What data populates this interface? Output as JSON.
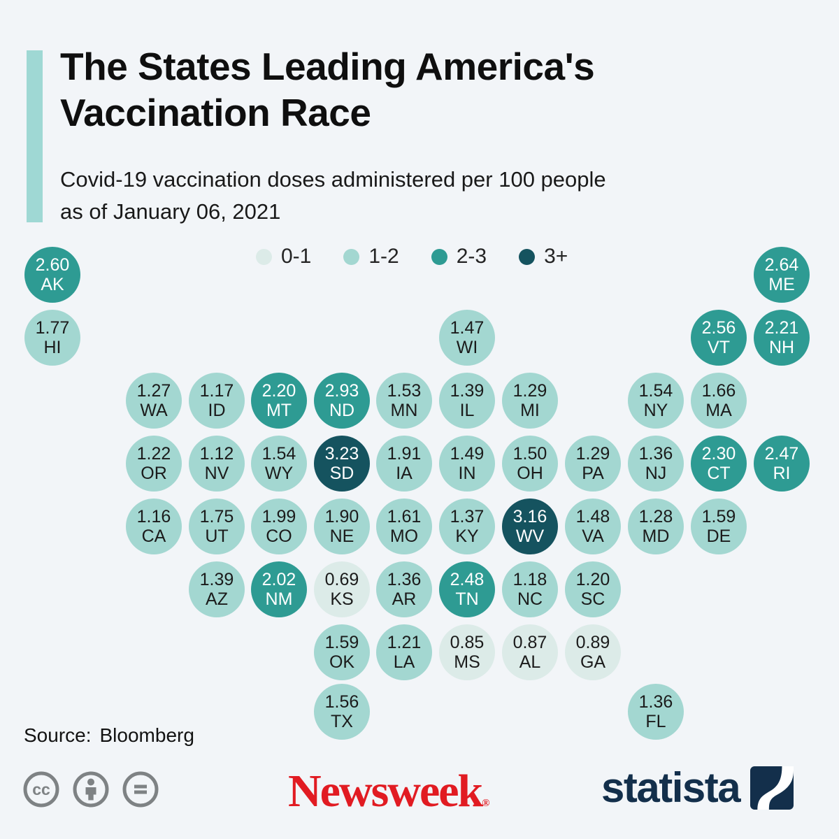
{
  "colors": {
    "background": "#f2f5f8",
    "accent_bar": "#9fd8d4",
    "bucket0": "#dcebe8",
    "bucket1": "#a3d7d1",
    "bucket2": "#2e9b93",
    "bucket3": "#15535f",
    "text_dark": "#1b1b1b",
    "text_light": "#ffffff",
    "newsweek_red": "#e11b22",
    "statista_navy": "#132f4b",
    "cc_gray": "#7e8284"
  },
  "header": {
    "title_line1": "The States Leading America's",
    "title_line2": "Vaccination Race",
    "subtitle_line1": "Covid-19 vaccination doses administered per 100 people",
    "subtitle_line2": "as of January 06, 2021"
  },
  "legend": {
    "items": [
      {
        "label": "0-1",
        "bucket": 0
      },
      {
        "label": "1-2",
        "bucket": 1
      },
      {
        "label": "2-3",
        "bucket": 2
      },
      {
        "label": "3+",
        "bucket": 3
      }
    ]
  },
  "chart_data": {
    "type": "heatmap",
    "variant": "tile-cartogram-bubble-map",
    "title": "The States Leading America's Vaccination Race",
    "subtitle": "Covid-19 vaccination doses administered per 100 people as of January 06, 2021",
    "value_unit": "doses administered per 100 people",
    "as_of": "January 06, 2021",
    "legend_buckets": [
      "0-1",
      "1-2",
      "2-3",
      "3+"
    ],
    "states": [
      {
        "abbr": "AK",
        "value": "2.60",
        "col": 0,
        "row": 0
      },
      {
        "abbr": "ME",
        "value": "2.64",
        "col": 11,
        "row": 0
      },
      {
        "abbr": "HI",
        "value": "1.77",
        "col": 0,
        "row": 1
      },
      {
        "abbr": "WI",
        "value": "1.47",
        "col": 6,
        "row": 1
      },
      {
        "abbr": "VT",
        "value": "2.56",
        "col": 10,
        "row": 1
      },
      {
        "abbr": "NH",
        "value": "2.21",
        "col": 11,
        "row": 1
      },
      {
        "abbr": "WA",
        "value": "1.27",
        "col": 1,
        "row": 2
      },
      {
        "abbr": "ID",
        "value": "1.17",
        "col": 2,
        "row": 2
      },
      {
        "abbr": "MT",
        "value": "2.20",
        "col": 3,
        "row": 2
      },
      {
        "abbr": "ND",
        "value": "2.93",
        "col": 4,
        "row": 2
      },
      {
        "abbr": "MN",
        "value": "1.53",
        "col": 5,
        "row": 2
      },
      {
        "abbr": "IL",
        "value": "1.39",
        "col": 6,
        "row": 2
      },
      {
        "abbr": "MI",
        "value": "1.29",
        "col": 7,
        "row": 2
      },
      {
        "abbr": "NY",
        "value": "1.54",
        "col": 9,
        "row": 2
      },
      {
        "abbr": "MA",
        "value": "1.66",
        "col": 10,
        "row": 2
      },
      {
        "abbr": "OR",
        "value": "1.22",
        "col": 1,
        "row": 3
      },
      {
        "abbr": "NV",
        "value": "1.12",
        "col": 2,
        "row": 3
      },
      {
        "abbr": "WY",
        "value": "1.54",
        "col": 3,
        "row": 3
      },
      {
        "abbr": "SD",
        "value": "3.23",
        "col": 4,
        "row": 3
      },
      {
        "abbr": "IA",
        "value": "1.91",
        "col": 5,
        "row": 3
      },
      {
        "abbr": "IN",
        "value": "1.49",
        "col": 6,
        "row": 3
      },
      {
        "abbr": "OH",
        "value": "1.50",
        "col": 7,
        "row": 3
      },
      {
        "abbr": "PA",
        "value": "1.29",
        "col": 8,
        "row": 3
      },
      {
        "abbr": "NJ",
        "value": "1.36",
        "col": 9,
        "row": 3
      },
      {
        "abbr": "CT",
        "value": "2.30",
        "col": 10,
        "row": 3
      },
      {
        "abbr": "RI",
        "value": "2.47",
        "col": 11,
        "row": 3
      },
      {
        "abbr": "CA",
        "value": "1.16",
        "col": 1,
        "row": 4
      },
      {
        "abbr": "UT",
        "value": "1.75",
        "col": 2,
        "row": 4
      },
      {
        "abbr": "CO",
        "value": "1.99",
        "col": 3,
        "row": 4
      },
      {
        "abbr": "NE",
        "value": "1.90",
        "col": 4,
        "row": 4
      },
      {
        "abbr": "MO",
        "value": "1.61",
        "col": 5,
        "row": 4
      },
      {
        "abbr": "KY",
        "value": "1.37",
        "col": 6,
        "row": 4
      },
      {
        "abbr": "WV",
        "value": "3.16",
        "col": 7,
        "row": 4
      },
      {
        "abbr": "VA",
        "value": "1.48",
        "col": 8,
        "row": 4
      },
      {
        "abbr": "MD",
        "value": "1.28",
        "col": 9,
        "row": 4
      },
      {
        "abbr": "DE",
        "value": "1.59",
        "col": 10,
        "row": 4
      },
      {
        "abbr": "AZ",
        "value": "1.39",
        "col": 2,
        "row": 5
      },
      {
        "abbr": "NM",
        "value": "2.02",
        "col": 3,
        "row": 5
      },
      {
        "abbr": "KS",
        "value": "0.69",
        "col": 4,
        "row": 5
      },
      {
        "abbr": "AR",
        "value": "1.36",
        "col": 5,
        "row": 5
      },
      {
        "abbr": "TN",
        "value": "2.48",
        "col": 6,
        "row": 5
      },
      {
        "abbr": "NC",
        "value": "1.18",
        "col": 7,
        "row": 5
      },
      {
        "abbr": "SC",
        "value": "1.20",
        "col": 8,
        "row": 5
      },
      {
        "abbr": "OK",
        "value": "1.59",
        "col": 4,
        "row": 6
      },
      {
        "abbr": "LA",
        "value": "1.21",
        "col": 5,
        "row": 6
      },
      {
        "abbr": "MS",
        "value": "0.85",
        "col": 6,
        "row": 6
      },
      {
        "abbr": "AL",
        "value": "0.87",
        "col": 7,
        "row": 6
      },
      {
        "abbr": "GA",
        "value": "0.89",
        "col": 8,
        "row": 6
      },
      {
        "abbr": "TX",
        "value": "1.56",
        "col": 4,
        "row": 7
      },
      {
        "abbr": "FL",
        "value": "1.36",
        "col": 9,
        "row": 7
      }
    ]
  },
  "footer": {
    "source_label": "Source:",
    "source_name": "Bloomberg",
    "license_icons": [
      "cc",
      "person",
      "equals"
    ],
    "newsweek_logo_text": "Newsweek",
    "newsweek_reg_mark": "®",
    "statista_logo_text": "statista"
  }
}
